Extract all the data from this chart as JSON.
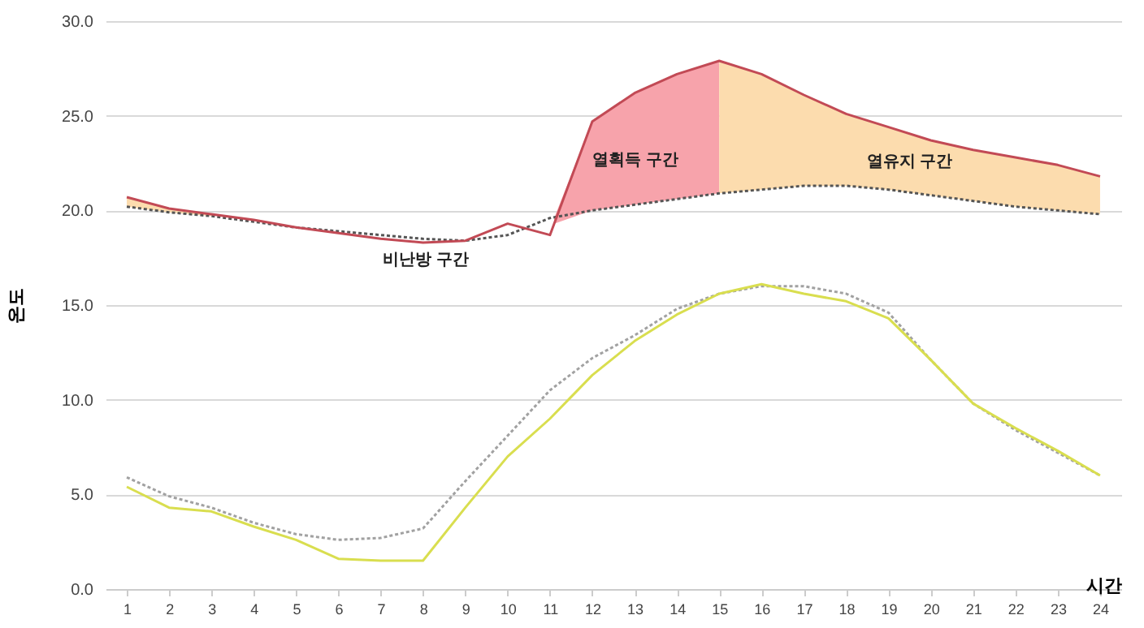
{
  "chart_data": {
    "type": "line",
    "ylabel": "온도",
    "xlabel": "시간",
    "x": [
      1,
      2,
      3,
      4,
      5,
      6,
      7,
      8,
      9,
      10,
      11,
      12,
      13,
      14,
      15,
      16,
      17,
      18,
      19,
      20,
      21,
      22,
      23,
      24
    ],
    "xlim": [
      0.5,
      24.5
    ],
    "xticks": [
      1,
      2,
      3,
      4,
      5,
      6,
      7,
      8,
      9,
      10,
      11,
      12,
      13,
      14,
      15,
      16,
      17,
      18,
      19,
      20,
      21,
      22,
      23,
      24
    ],
    "ylim": [
      0,
      30
    ],
    "yticks": [
      {
        "value": 0,
        "label": "0.0"
      },
      {
        "value": 5,
        "label": "5.0"
      },
      {
        "value": 10,
        "label": "10.0"
      },
      {
        "value": 15,
        "label": "15.0"
      },
      {
        "value": 20,
        "label": "20.0"
      },
      {
        "value": 25,
        "label": "25.0"
      },
      {
        "value": 30,
        "label": "30.0"
      }
    ],
    "grid": "y",
    "marker": "none",
    "series": [
      {
        "type": "area",
        "color": "#fcdcae",
        "x": [
          1,
          2,
          3
        ],
        "values": [
          20.7,
          20.1,
          19.8
        ]
      },
      {
        "type": "area",
        "name": "열획득 구간",
        "color": "#f7a3ab",
        "x": [
          11.1,
          12,
          13,
          14,
          15
        ],
        "values": [
          19.6,
          24.7,
          26.2,
          27.2,
          27.9
        ]
      },
      {
        "type": "area",
        "name": "열유지 구간",
        "color": "#fcdcae",
        "x": [
          15,
          16,
          17,
          18,
          19,
          20,
          21,
          22,
          23,
          24
        ],
        "values": [
          27.9,
          27.2,
          26.1,
          25.1,
          24.4,
          23.7,
          23.2,
          22.8,
          22.4,
          21.8
        ]
      },
      {
        "color": "#a1a1a1",
        "line_style": "dotted",
        "values": [
          5.9,
          4.9,
          4.3,
          3.5,
          2.9,
          2.6,
          2.7,
          3.2,
          5.7,
          8.1,
          10.5,
          12.2,
          13.4,
          14.8,
          15.6,
          16.0,
          16.0,
          15.6,
          14.6,
          12.1,
          9.8,
          8.4,
          7.2,
          6.0
        ]
      },
      {
        "color": "#d9de4f",
        "line_style": "solid",
        "values": [
          5.4,
          4.3,
          4.1,
          3.3,
          2.6,
          1.6,
          1.5,
          1.5,
          4.3,
          7.0,
          9.0,
          11.3,
          13.1,
          14.5,
          15.6,
          16.1,
          15.6,
          15.2,
          14.3,
          12.1,
          9.8,
          8.5,
          7.3,
          6.0
        ]
      },
      {
        "color": "#555555",
        "line_style": "dotted",
        "values": [
          20.2,
          19.9,
          19.7,
          19.4,
          19.1,
          18.9,
          18.7,
          18.5,
          18.4,
          18.7,
          19.6,
          20.0,
          20.3,
          20.6,
          20.9,
          21.1,
          21.3,
          21.3,
          21.1,
          20.8,
          20.5,
          20.2,
          20.0,
          19.8
        ]
      },
      {
        "color": "#c24a55",
        "line_style": "solid",
        "values": [
          20.7,
          20.1,
          19.8,
          19.5,
          19.1,
          18.8,
          18.5,
          18.3,
          18.4,
          19.3,
          18.7,
          24.7,
          26.2,
          27.2,
          27.9,
          27.2,
          26.1,
          25.1,
          24.4,
          23.7,
          23.2,
          22.8,
          22.4,
          21.8
        ]
      }
    ],
    "annotations": [
      "비난방 구간"
    ]
  }
}
